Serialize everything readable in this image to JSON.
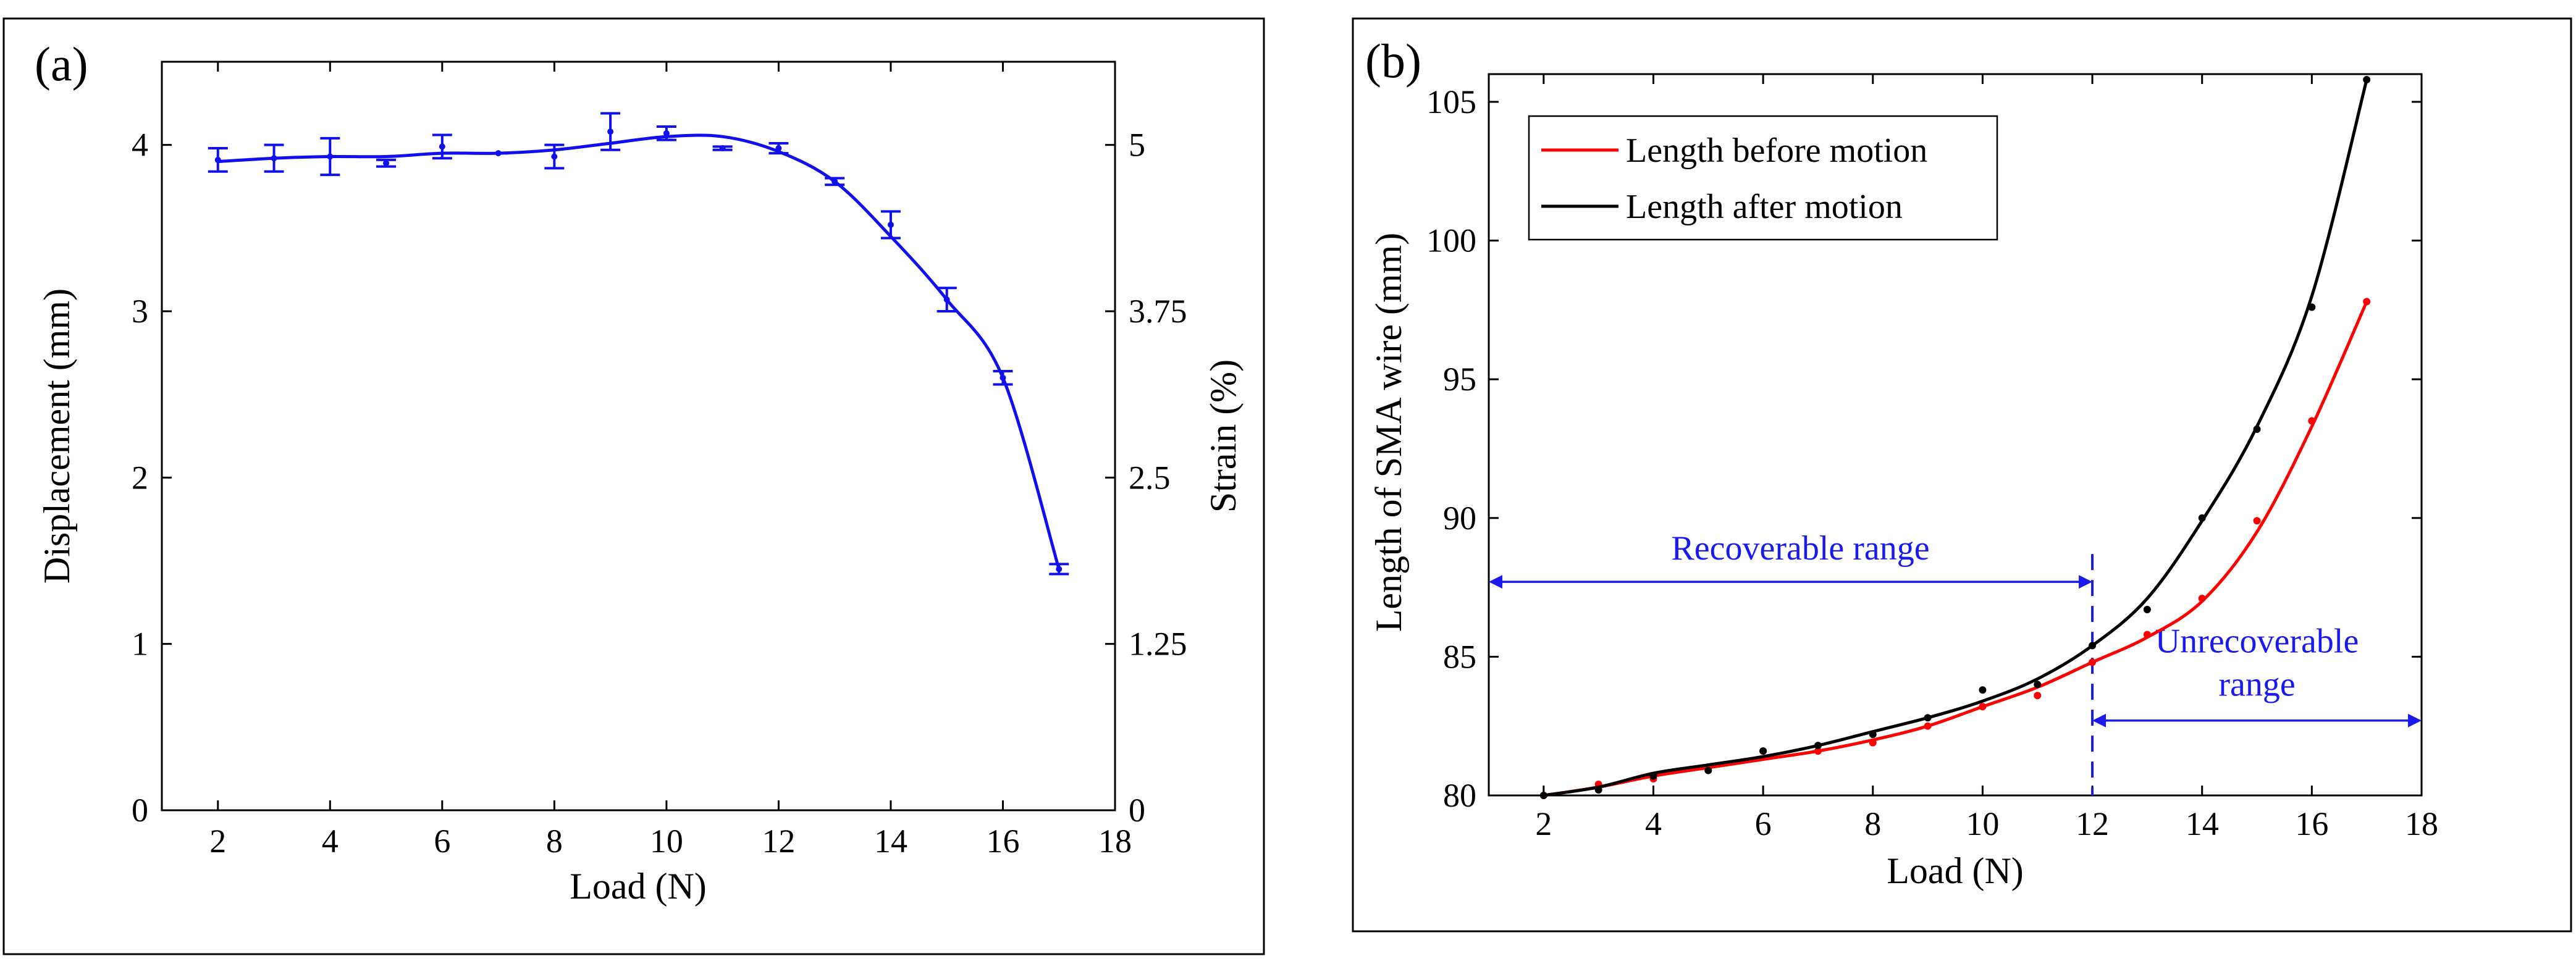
{
  "chart_data": [
    {
      "panel_label": "(a)",
      "type": "line",
      "xlabel": "Load (N)",
      "ylabel": "Displacement (mm)",
      "ylabel_right": "Strain (%)",
      "xlim": [
        1,
        18
      ],
      "ylim": [
        0,
        4.5
      ],
      "x_ticks": [
        2,
        4,
        6,
        8,
        10,
        12,
        14,
        16,
        18
      ],
      "y_ticks": [
        0,
        1,
        2,
        3,
        4
      ],
      "y_right_ticks": [
        {
          "value": 0,
          "label": "0"
        },
        {
          "value": 1.25,
          "label": "1.25"
        },
        {
          "value": 2.5,
          "label": "2.5"
        },
        {
          "value": 3.75,
          "label": "3.75"
        },
        {
          "value": 5,
          "label": "5"
        }
      ],
      "y_right_lim": [
        0,
        5.625
      ],
      "series": [
        {
          "name": "Displacement",
          "color": "#1010ee",
          "x": [
            2,
            3,
            4,
            5,
            6,
            7,
            8,
            9,
            10,
            11,
            12,
            13,
            14,
            15,
            16,
            17
          ],
          "y": [
            3.91,
            3.92,
            3.93,
            3.89,
            3.99,
            3.95,
            3.93,
            4.08,
            4.07,
            3.98,
            3.98,
            3.78,
            3.52,
            3.07,
            2.6,
            1.45
          ],
          "err": [
            0.07,
            0.08,
            0.11,
            0.02,
            0.07,
            0.0,
            0.07,
            0.11,
            0.04,
            0.01,
            0.03,
            0.02,
            0.08,
            0.07,
            0.04,
            0.03
          ],
          "fit_x": [
            2,
            3,
            4,
            5,
            6,
            7,
            8,
            9,
            10,
            11,
            12,
            13,
            14,
            15,
            16,
            17
          ],
          "fit_y": [
            3.9,
            3.92,
            3.93,
            3.93,
            3.95,
            3.95,
            3.97,
            4.01,
            4.05,
            4.05,
            3.96,
            3.78,
            3.45,
            3.07,
            2.6,
            1.45
          ]
        }
      ]
    },
    {
      "panel_label": "(b)",
      "type": "line",
      "xlabel": "Load (N)",
      "ylabel": "Length of SMA wire (mm)",
      "xlim": [
        1,
        18
      ],
      "ylim": [
        80,
        106
      ],
      "x_ticks": [
        2,
        4,
        6,
        8,
        10,
        12,
        14,
        16,
        18
      ],
      "y_ticks": [
        80,
        85,
        90,
        95,
        100,
        105
      ],
      "legend_position": "top-left",
      "series": [
        {
          "name": "Length before motion",
          "color": "#ff0000",
          "x": [
            2,
            3,
            4,
            5,
            6,
            7,
            8,
            9,
            10,
            11,
            12,
            13,
            14,
            15,
            16,
            17
          ],
          "y": [
            80.0,
            80.4,
            80.6,
            81.0,
            81.6,
            81.6,
            81.9,
            82.5,
            83.2,
            83.6,
            84.8,
            85.8,
            87.1,
            89.9,
            93.5,
            97.8
          ],
          "fit_y": [
            80.0,
            80.3,
            80.7,
            81.0,
            81.3,
            81.6,
            82.0,
            82.5,
            83.2,
            83.9,
            84.8,
            85.7,
            87.0,
            89.5,
            93.3,
            97.8
          ]
        },
        {
          "name": "Length after motion",
          "color": "#000000",
          "x": [
            2,
            3,
            4,
            5,
            6,
            7,
            8,
            9,
            10,
            11,
            12,
            13,
            14,
            15,
            16,
            17
          ],
          "y": [
            80.0,
            80.2,
            80.7,
            80.9,
            81.6,
            81.8,
            82.2,
            82.8,
            83.8,
            84.0,
            85.4,
            86.7,
            90.0,
            93.2,
            97.6,
            105.8
          ],
          "fit_y": [
            80.0,
            80.3,
            80.8,
            81.1,
            81.4,
            81.8,
            82.3,
            82.8,
            83.4,
            84.2,
            85.4,
            87.1,
            89.9,
            93.3,
            98.0,
            105.8
          ]
        }
      ],
      "annotations": {
        "recoverable_label": "Recoverable range",
        "recoverable_range": [
          1,
          12
        ],
        "recoverable_y": 87.7,
        "unrecoverable_label_line1": "Unrecoverable",
        "unrecoverable_label_line2": "range",
        "unrecoverable_range": [
          12,
          18
        ],
        "unrecoverable_y": 82.7,
        "boundary_x": 12,
        "color": "#1a1aee"
      }
    }
  ]
}
